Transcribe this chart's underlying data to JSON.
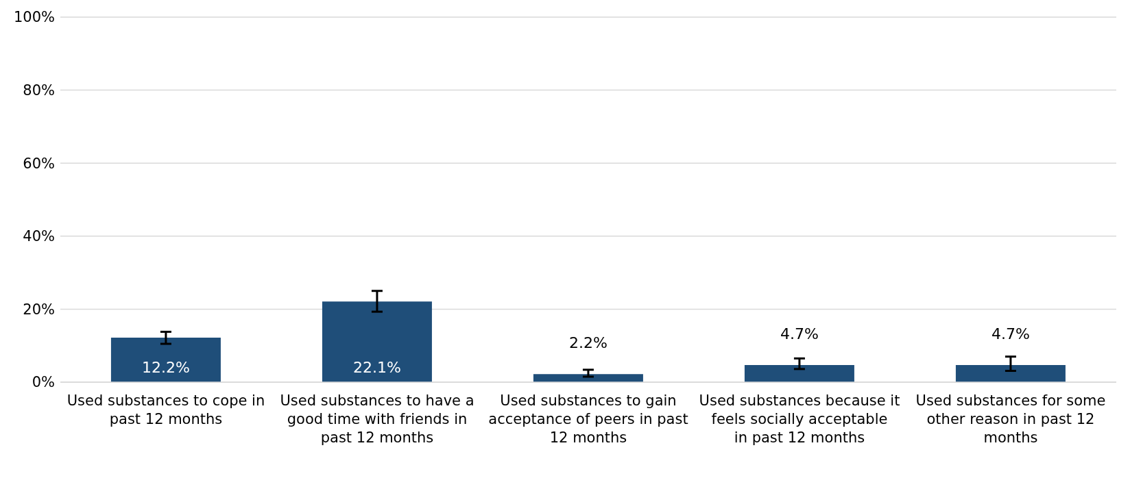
{
  "chart_data": {
    "type": "bar",
    "categories": [
      "Used substances to cope in past 12 months",
      "Used substances to have a good time with friends in past 12 months",
      "Used substances to gain acceptance of peers in past 12 months",
      "Used substances because it feels socially acceptable in past 12 months",
      "Used substances for some other reason in past 12 months"
    ],
    "values": [
      12.2,
      22.1,
      2.2,
      4.7,
      4.7
    ],
    "errors": [
      [
        10.5,
        13.8
      ],
      [
        19.3,
        25.0
      ],
      [
        1.5,
        3.4
      ],
      [
        3.6,
        6.5
      ],
      [
        3.1,
        7.0
      ]
    ],
    "color": "#1f4e79",
    "value_labels": [
      "12.2%",
      "22.1%",
      "2.2%",
      "4.7%",
      "4.7%"
    ],
    "ylim": [
      0,
      100
    ],
    "yticks": [
      {
        "value": 0,
        "label": "0%"
      },
      {
        "value": 20,
        "label": "20%"
      },
      {
        "value": 40,
        "label": "40%"
      },
      {
        "value": 60,
        "label": "60%"
      },
      {
        "value": 80,
        "label": "80%"
      },
      {
        "value": 100,
        "label": "100%"
      }
    ],
    "grid": "y"
  }
}
